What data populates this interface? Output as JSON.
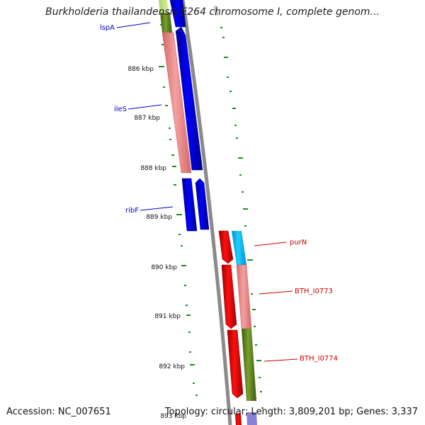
{
  "header": {
    "title": "Burkholderia thailandensis E264 chromosome I, complete genom..."
  },
  "footer": {
    "accession": "Accession: NC_007651",
    "summary": "Topology: circular; Length: 3,809,201 bp; Genes: 3,337"
  },
  "ticks": [
    "886 kbp",
    "887 kbp",
    "888 kbp",
    "889 kbp",
    "890 kbp",
    "891 kbp",
    "892 kbp",
    "893 kbp"
  ],
  "genes": {
    "lspA": "lspA",
    "ileS": "ileS",
    "ribF": "ribF",
    "purN": "purN",
    "bth0773": "BTH_I0773",
    "bth0774": "BTH_I0774"
  },
  "colors": {
    "forward_cds": "#0000ee",
    "reverse_cds": "#ee0000",
    "cog_pink": "#f08a8a",
    "cog_olive": "#6b8e23",
    "cog_cyan": "#00bfff",
    "backbone": "#888888",
    "gc_dots": "#228b22",
    "label_blue": "#0000cc",
    "label_red": "#cc0000"
  }
}
